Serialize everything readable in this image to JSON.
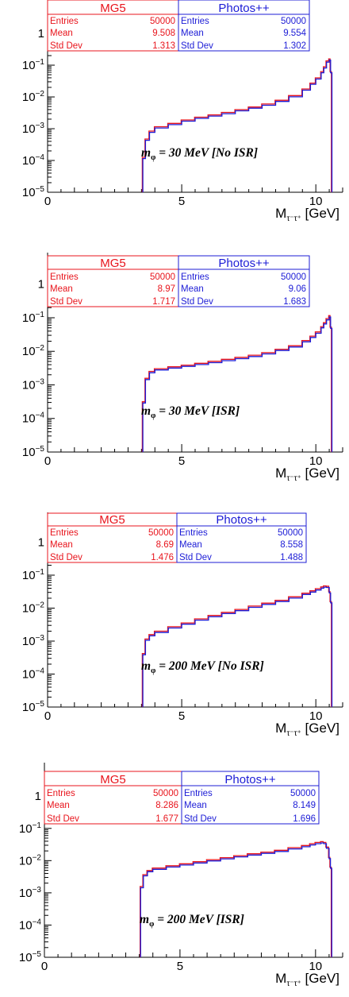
{
  "chart_data": [
    {
      "type": "line",
      "annotation": "m_φ = 30 MeV [No ISR]",
      "annotation_parts": {
        "m": "m",
        "sub": "φ",
        "rest": " = 30 MeV [No ISR]"
      },
      "xlabel": "M_τ⁻τ⁺ [GeV]",
      "xlabel_parts": {
        "main": "M",
        "sub": "τ⁻τ⁺",
        "unit": " [GeV]"
      },
      "xlim": [
        0,
        11
      ],
      "ylim": [
        1e-05,
        2
      ],
      "yscale": "log",
      "x_ticks": [
        "0",
        "5",
        "10"
      ],
      "y_ticks": [
        {
          "v": 1,
          "base": "1",
          "exp": ""
        },
        {
          "v": 0.1,
          "base": "10",
          "exp": "−1"
        },
        {
          "v": 0.01,
          "base": "10",
          "exp": "−2"
        },
        {
          "v": 0.001,
          "base": "10",
          "exp": "−3"
        },
        {
          "v": 0.0001,
          "base": "10",
          "exp": "−4"
        },
        {
          "v": 1e-05,
          "base": "10",
          "exp": "−5"
        }
      ],
      "series": [
        {
          "name": "MG5",
          "color": "#e8141c",
          "stats": [
            {
              "label": "Entries",
              "value": "50000"
            },
            {
              "label": "Mean",
              "value": "9.508"
            },
            {
              "label": "Std Dev",
              "value": "1.313"
            }
          ]
        },
        {
          "name": "Photos++",
          "color": "#1c1cd6",
          "stats": [
            {
              "label": "Entries",
              "value": "50000"
            },
            {
              "label": "Mean",
              "value": "9.554"
            },
            {
              "label": "Std Dev",
              "value": "1.302"
            }
          ]
        }
      ],
      "curve": {
        "x": [
          3.55,
          3.65,
          3.8,
          4.0,
          4.5,
          5.0,
          5.5,
          6.0,
          6.5,
          7.0,
          7.5,
          8.0,
          8.5,
          9.0,
          9.5,
          9.8,
          10.0,
          10.2,
          10.3,
          10.4,
          10.5,
          10.55
        ],
        "y": [
          0.00012,
          0.00045,
          0.0008,
          0.0011,
          0.0014,
          0.0018,
          0.0022,
          0.0026,
          0.0031,
          0.0038,
          0.0046,
          0.0057,
          0.0075,
          0.0105,
          0.017,
          0.026,
          0.038,
          0.06,
          0.085,
          0.13,
          0.15,
          0.06
        ]
      }
    },
    {
      "type": "line",
      "annotation": "m_φ = 30 MeV [ISR]",
      "annotation_parts": {
        "m": "m",
        "sub": "φ",
        "rest": " = 30 MeV [ISR]"
      },
      "xlabel": "M_τ⁻τ⁺ [GeV]",
      "xlabel_parts": {
        "main": "M",
        "sub": "τ⁻τ⁺",
        "unit": " [GeV]"
      },
      "xlim": [
        0,
        11
      ],
      "ylim": [
        1e-05,
        2
      ],
      "yscale": "log",
      "x_ticks": [
        "0",
        "5",
        "10"
      ],
      "y_ticks": [
        {
          "v": 1,
          "base": "1",
          "exp": ""
        },
        {
          "v": 0.1,
          "base": "10",
          "exp": "−1"
        },
        {
          "v": 0.01,
          "base": "10",
          "exp": "−2"
        },
        {
          "v": 0.001,
          "base": "10",
          "exp": "−3"
        },
        {
          "v": 0.0001,
          "base": "10",
          "exp": "−4"
        },
        {
          "v": 1e-05,
          "base": "10",
          "exp": "−5"
        }
      ],
      "series": [
        {
          "name": "MG5",
          "color": "#e8141c",
          "stats": [
            {
              "label": "Entries",
              "value": "50000"
            },
            {
              "label": "Mean",
              "value": "8.97"
            },
            {
              "label": "Std Dev",
              "value": "1.717"
            }
          ]
        },
        {
          "name": "Photos++",
          "color": "#1c1cd6",
          "stats": [
            {
              "label": "Entries",
              "value": "50000"
            },
            {
              "label": "Mean",
              "value": "9.06"
            },
            {
              "label": "Std Dev",
              "value": "1.683"
            }
          ]
        }
      ],
      "curve": {
        "x": [
          3.55,
          3.65,
          3.8,
          4.0,
          4.5,
          5.0,
          5.5,
          6.0,
          6.5,
          7.0,
          7.5,
          8.0,
          8.5,
          9.0,
          9.5,
          9.8,
          10.0,
          10.2,
          10.3,
          10.4,
          10.5,
          10.55
        ],
        "y": [
          0.0003,
          0.0015,
          0.0024,
          0.0029,
          0.0033,
          0.0037,
          0.0042,
          0.0048,
          0.0055,
          0.0063,
          0.0073,
          0.0087,
          0.011,
          0.014,
          0.02,
          0.027,
          0.036,
          0.052,
          0.068,
          0.09,
          0.11,
          0.05
        ]
      }
    },
    {
      "type": "line",
      "annotation": "m_φ = 200 MeV [No ISR]",
      "annotation_parts": {
        "m": "m",
        "sub": "φ",
        "rest": " = 200 MeV [No ISR]"
      },
      "xlabel": "M_τ⁻τ⁺ [GeV]",
      "xlabel_parts": {
        "main": "M",
        "sub": "τ⁻τ⁺",
        "unit": " [GeV]"
      },
      "xlim": [
        0,
        11
      ],
      "ylim": [
        1e-05,
        2
      ],
      "yscale": "log",
      "x_ticks": [
        "0",
        "5",
        "10"
      ],
      "y_ticks": [
        {
          "v": 1,
          "base": "1",
          "exp": ""
        },
        {
          "v": 0.1,
          "base": "10",
          "exp": "−1"
        },
        {
          "v": 0.01,
          "base": "10",
          "exp": "−2"
        },
        {
          "v": 0.001,
          "base": "10",
          "exp": "−3"
        },
        {
          "v": 0.0001,
          "base": "10",
          "exp": "−4"
        },
        {
          "v": 1e-05,
          "base": "10",
          "exp": "−5"
        }
      ],
      "series": [
        {
          "name": "MG5",
          "color": "#e8141c",
          "stats": [
            {
              "label": "Entries",
              "value": "50000"
            },
            {
              "label": "Mean",
              "value": "8.69"
            },
            {
              "label": "Std Dev",
              "value": "1.476"
            }
          ]
        },
        {
          "name": "Photos++",
          "color": "#1c1cd6",
          "stats": [
            {
              "label": "Entries",
              "value": "50000"
            },
            {
              "label": "Mean",
              "value": "8.558"
            },
            {
              "label": "Std Dev",
              "value": "1.488"
            }
          ]
        }
      ],
      "curve": {
        "x": [
          3.55,
          3.65,
          3.8,
          4.0,
          4.5,
          5.0,
          5.5,
          6.0,
          6.5,
          7.0,
          7.5,
          8.0,
          8.5,
          9.0,
          9.5,
          9.8,
          10.0,
          10.2,
          10.3,
          10.4,
          10.5,
          10.55
        ],
        "y": [
          0.0004,
          0.0011,
          0.0015,
          0.0019,
          0.0026,
          0.0034,
          0.0045,
          0.0057,
          0.0071,
          0.0087,
          0.011,
          0.0135,
          0.0165,
          0.021,
          0.027,
          0.032,
          0.037,
          0.042,
          0.045,
          0.044,
          0.03,
          0.015
        ]
      }
    },
    {
      "type": "line",
      "annotation": "m_φ = 200 MeV [ISR]",
      "annotation_parts": {
        "m": "m",
        "sub": "φ",
        "rest": " = 200 MeV [ISR]"
      },
      "xlabel": "M_τ⁻τ⁺ [GeV]",
      "xlabel_parts": {
        "main": "M",
        "sub": "τ⁻τ⁺",
        "unit": " [GeV]"
      },
      "xlim": [
        0,
        11
      ],
      "ylim": [
        1e-05,
        2
      ],
      "yscale": "log",
      "x_ticks": [
        "0",
        "5",
        "10"
      ],
      "y_ticks": [
        {
          "v": 1,
          "base": "1",
          "exp": ""
        },
        {
          "v": 0.1,
          "base": "10",
          "exp": "−1"
        },
        {
          "v": 0.01,
          "base": "10",
          "exp": "−2"
        },
        {
          "v": 0.001,
          "base": "10",
          "exp": "−3"
        },
        {
          "v": 0.0001,
          "base": "10",
          "exp": "−4"
        },
        {
          "v": 1e-05,
          "base": "10",
          "exp": "−5"
        }
      ],
      "series": [
        {
          "name": "MG5",
          "color": "#e8141c",
          "stats": [
            {
              "label": "Entries",
              "value": "50000"
            },
            {
              "label": "Mean",
              "value": "8.286"
            },
            {
              "label": "Std Dev",
              "value": "1.677"
            }
          ]
        },
        {
          "name": "Photos++",
          "color": "#1c1cd6",
          "stats": [
            {
              "label": "Entries",
              "value": "50000"
            },
            {
              "label": "Mean",
              "value": "8.149"
            },
            {
              "label": "Std Dev",
              "value": "1.696"
            }
          ]
        }
      ],
      "curve": {
        "x": [
          3.55,
          3.65,
          3.8,
          4.0,
          4.5,
          5.0,
          5.5,
          6.0,
          6.5,
          7.0,
          7.5,
          8.0,
          8.5,
          9.0,
          9.5,
          9.8,
          10.0,
          10.2,
          10.3,
          10.4,
          10.5,
          10.55
        ],
        "y": [
          0.0015,
          0.0035,
          0.0047,
          0.0056,
          0.0066,
          0.0076,
          0.0088,
          0.0102,
          0.0118,
          0.0136,
          0.0155,
          0.0175,
          0.02,
          0.024,
          0.028,
          0.032,
          0.035,
          0.037,
          0.035,
          0.025,
          0.012,
          0.006
        ]
      }
    }
  ]
}
